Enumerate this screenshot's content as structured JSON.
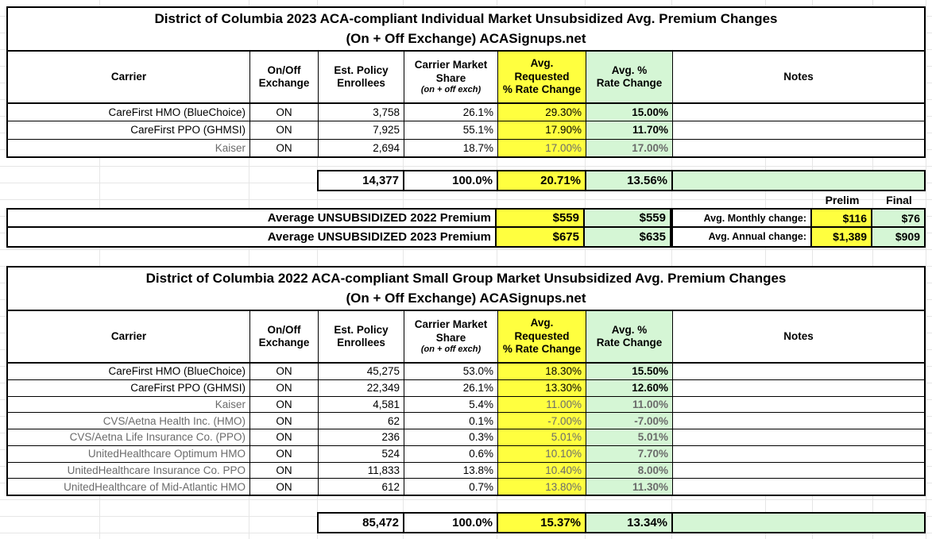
{
  "colors": {
    "requested_col_bg": "#FFFF3F",
    "rate_change_col_bg": "#D5F6D5",
    "muted_text": "#6B6B6B",
    "border": "#000000",
    "gridline": "#E6E6E6"
  },
  "headers": {
    "carrier": "Carrier",
    "exchange": "On/Off\nExchange",
    "enrollees": "Est. Policy\nEnrollees",
    "share_main": "Carrier Market\nShare",
    "share_note": "(on + off exch)",
    "requested": "Avg.\nRequested\n% Rate Change",
    "approved": "Avg. %\nRate Change",
    "notes": "Notes"
  },
  "tables": [
    {
      "title1": "District of Columbia 2023 ACA-compliant Individual Market Unsubsidized Avg. Premium Changes",
      "title2": "(On + Off Exchange) ACASignups.net",
      "rows": [
        {
          "carrier": "CareFirst HMO (BlueChoice)",
          "exchange": "ON",
          "enrollees": "3,758",
          "share": "26.1%",
          "requested": "29.30%",
          "approved": "15.00%",
          "muted": false
        },
        {
          "carrier": "CareFirst PPO (GHMSI)",
          "exchange": "ON",
          "enrollees": "7,925",
          "share": "55.1%",
          "requested": "17.90%",
          "approved": "11.70%",
          "muted": false
        },
        {
          "carrier": "Kaiser",
          "exchange": "ON",
          "enrollees": "2,694",
          "share": "18.7%",
          "requested": "17.00%",
          "approved": "17.00%",
          "muted": true
        }
      ],
      "summary": {
        "enrollees": "14,377",
        "share": "100.0%",
        "requested": "20.71%",
        "approved": "13.56%"
      }
    },
    {
      "title1": "District of Columbia 2022 ACA-compliant Small Group Market Unsubsidized Avg. Premium Changes",
      "title2": "(On + Off Exchange) ACASignups.net",
      "rows": [
        {
          "carrier": "CareFirst HMO (BlueChoice)",
          "exchange": "ON",
          "enrollees": "45,275",
          "share": "53.0%",
          "requested": "18.30%",
          "approved": "15.50%",
          "muted": false
        },
        {
          "carrier": "CareFirst PPO (GHMSI)",
          "exchange": "ON",
          "enrollees": "22,349",
          "share": "26.1%",
          "requested": "13.30%",
          "approved": "12.60%",
          "muted": false
        },
        {
          "carrier": "Kaiser",
          "exchange": "ON",
          "enrollees": "4,581",
          "share": "5.4%",
          "requested": "11.00%",
          "approved": "11.00%",
          "muted": true
        },
        {
          "carrier": "CVS/Aetna Health Inc. (HMO)",
          "exchange": "ON",
          "enrollees": "62",
          "share": "0.1%",
          "requested": "-7.00%",
          "approved": "-7.00%",
          "muted": true
        },
        {
          "carrier": "CVS/Aetna Life Insurance Co. (PPO)",
          "exchange": "ON",
          "enrollees": "236",
          "share": "0.3%",
          "requested": "5.01%",
          "approved": "5.01%",
          "muted": true
        },
        {
          "carrier": "UnitedHealthcare Optimum HMO",
          "exchange": "ON",
          "enrollees": "524",
          "share": "0.6%",
          "requested": "10.10%",
          "approved": "7.70%",
          "muted": true
        },
        {
          "carrier": "UnitedHealthcare Insurance Co. PPO",
          "exchange": "ON",
          "enrollees": "11,833",
          "share": "13.8%",
          "requested": "10.40%",
          "approved": "8.00%",
          "muted": true
        },
        {
          "carrier": "UnitedHealthcare of Mid-Atlantic HMO",
          "exchange": "ON",
          "enrollees": "612",
          "share": "0.7%",
          "requested": "13.80%",
          "approved": "11.30%",
          "muted": true
        }
      ],
      "summary": {
        "enrollees": "85,472",
        "share": "100.0%",
        "requested": "15.37%",
        "approved": "13.34%"
      }
    }
  ],
  "premium": {
    "prelim_label": "Prelim",
    "final_label": "Final",
    "rows": [
      {
        "label": "Average UNSUBSIDIZED 2022 Premium",
        "requested": "$559",
        "approved": "$559",
        "change_label": "Avg. Monthly change:",
        "prelim": "$116",
        "final": "$76"
      },
      {
        "label": "Average UNSUBSIDIZED 2023 Premium",
        "requested": "$675",
        "approved": "$635",
        "change_label": "Avg. Annual change:",
        "prelim": "$1,389",
        "final": "$909"
      }
    ]
  }
}
